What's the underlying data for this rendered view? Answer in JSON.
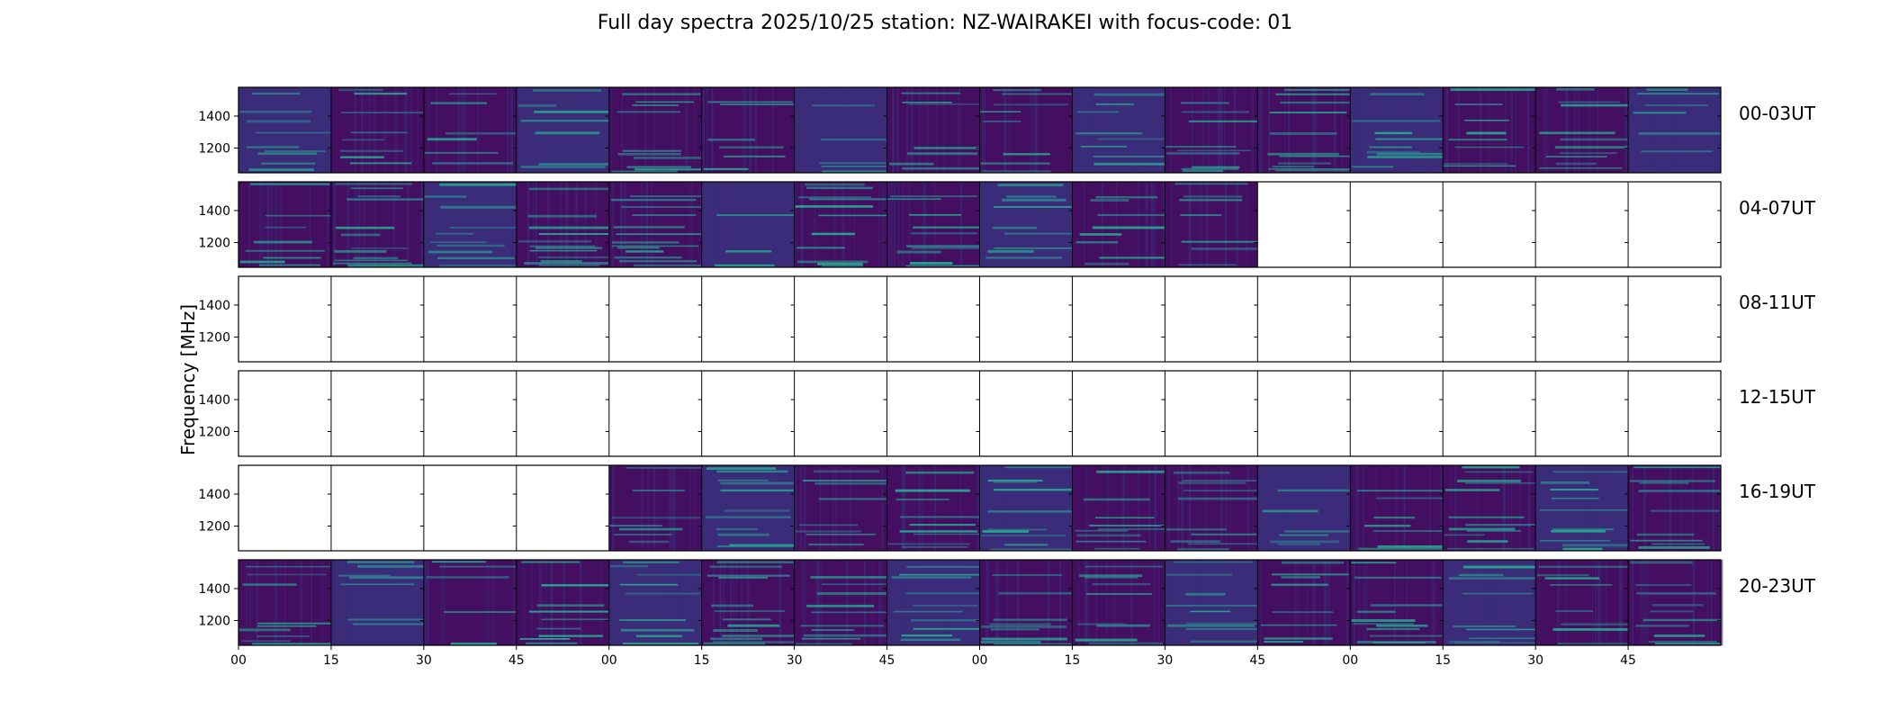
{
  "chart_data": {
    "type": "heatmap",
    "title": "Full day spectra 2025/10/25 station: NZ-WAIRAKEI with focus-code: 01",
    "ylabel": "Frequency [MHz]",
    "xlabel": "",
    "y_ticks": [
      1400,
      1200
    ],
    "ylim": [
      1045,
      1580
    ],
    "x_ticks": [
      "00",
      "15",
      "30",
      "45",
      "00",
      "15",
      "30",
      "45",
      "00",
      "15",
      "30",
      "45",
      "00",
      "15",
      "30",
      "45"
    ],
    "colormap": "viridis",
    "rows": [
      {
        "label": "00-03UT",
        "has_data": [
          true,
          true,
          true,
          true,
          true,
          true,
          true,
          true,
          true,
          true,
          true,
          true,
          true,
          true,
          true,
          true
        ]
      },
      {
        "label": "04-07UT",
        "has_data": [
          true,
          true,
          true,
          true,
          true,
          true,
          true,
          true,
          true,
          true,
          true,
          false,
          false,
          false,
          false,
          false
        ]
      },
      {
        "label": "08-11UT",
        "has_data": [
          false,
          false,
          false,
          false,
          false,
          false,
          false,
          false,
          false,
          false,
          false,
          false,
          false,
          false,
          false,
          false
        ]
      },
      {
        "label": "12-15UT",
        "has_data": [
          false,
          false,
          false,
          false,
          false,
          false,
          false,
          false,
          false,
          false,
          false,
          false,
          false,
          false,
          false,
          false
        ]
      },
      {
        "label": "16-19UT",
        "has_data": [
          false,
          false,
          false,
          false,
          true,
          true,
          true,
          true,
          true,
          true,
          true,
          true,
          true,
          true,
          true,
          true
        ]
      },
      {
        "label": "20-23UT",
        "has_data": [
          true,
          true,
          true,
          true,
          true,
          true,
          true,
          true,
          true,
          true,
          true,
          true,
          true,
          true,
          true,
          true
        ]
      }
    ],
    "grid": false
  },
  "colors": {
    "background_dark": "#440e61",
    "background_mid": "#3b2c7a",
    "line_cyan": "#27a890",
    "line_teal": "#2f7f8e",
    "empty": "#ffffff",
    "frame": "#000000"
  }
}
